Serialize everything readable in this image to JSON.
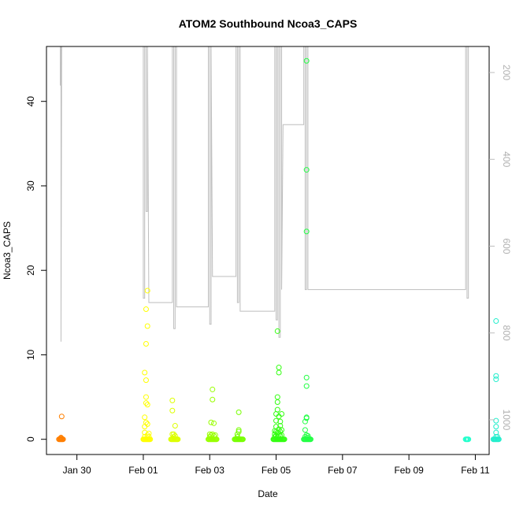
{
  "chart_data": {
    "type": "scatter",
    "title": "ATOM2 Southbound Ncoa3_CAPS",
    "xlabel": "Date",
    "ylabel": "Ncoa3_CAPS",
    "x_unit": "date",
    "xlim": [
      "2024-01-29 02:00",
      "2024-02-11 10:00"
    ],
    "ylim": [
      -1.8,
      46.5
    ],
    "x_ticks": [
      {
        "date": "2024-01-30",
        "label": "Jan 30"
      },
      {
        "date": "2024-02-01",
        "label": "Feb 01"
      },
      {
        "date": "2024-02-03",
        "label": "Feb 03"
      },
      {
        "date": "2024-02-05",
        "label": "Feb 05"
      },
      {
        "date": "2024-02-07",
        "label": "Feb 07"
      },
      {
        "date": "2024-02-09",
        "label": "Feb 09"
      },
      {
        "date": "2024-02-11",
        "label": "Feb 11"
      }
    ],
    "y_ticks": [
      0,
      10,
      20,
      30,
      40
    ],
    "secondary_axis": {
      "side": "right",
      "reversed": true,
      "range": [
        1080,
        140
      ],
      "ticks": [
        200,
        400,
        600,
        800,
        1000
      ],
      "color": "#bebebe",
      "series_type": "line",
      "x": [
        "2024-01-29 12:00",
        "2024-01-29 12:00",
        "2024-01-29 12:30",
        "2024-01-29 12:30",
        "2024-01-29 13:00",
        "2024-02-01 00:00",
        "2024-02-01 00:00",
        "2024-02-01 01:00",
        "2024-02-01 01:00",
        "2024-02-01 02:00",
        "2024-02-01 02:00",
        "2024-02-01 03:00",
        "2024-02-01 03:00",
        "2024-02-01 04:00",
        "2024-02-01 21:00",
        "2024-02-01 21:00",
        "2024-02-01 22:00",
        "2024-02-01 22:00",
        "2024-02-01 23:00",
        "2024-02-01 23:00",
        "2024-02-02 00:00",
        "2024-02-02 00:00",
        "2024-02-02 23:00",
        "2024-02-02 23:00",
        "2024-02-03 00:00",
        "2024-02-03 00:00",
        "2024-02-03 01:00",
        "2024-02-03 01:00",
        "2024-02-03 02:00",
        "2024-02-03 19:00",
        "2024-02-03 19:00",
        "2024-02-03 20:00",
        "2024-02-03 20:00",
        "2024-02-03 21:00",
        "2024-02-03 21:00",
        "2024-02-03 22:00",
        "2024-02-03 22:00",
        "2024-02-04 23:00",
        "2024-02-04 23:00",
        "2024-02-05 00:00",
        "2024-02-05 00:00",
        "2024-02-05 01:00",
        "2024-02-05 01:00",
        "2024-02-05 02:00",
        "2024-02-05 02:00",
        "2024-02-05 03:00",
        "2024-02-05 03:00",
        "2024-02-05 04:00",
        "2024-02-05 04:00",
        "2024-02-05 05:00",
        "2024-02-05 20:00",
        "2024-02-05 20:00",
        "2024-02-05 21:00",
        "2024-02-05 21:00",
        "2024-02-05 22:00",
        "2024-02-05 22:00",
        "2024-02-05 23:00",
        "2024-02-05 23:00",
        "2024-02-10 17:00",
        "2024-02-10 17:00",
        "2024-02-10 18:00",
        "2024-02-10 18:00",
        "2024-02-10 19:00",
        "2024-02-10 19:00",
        "2024-02-10 20:00"
      ],
      "values": [
        230,
        140,
        140,
        820,
        140,
        140,
        720,
        720,
        140,
        140,
        520,
        520,
        140,
        730,
        730,
        140,
        140,
        790,
        790,
        140,
        140,
        740,
        740,
        140,
        140,
        780,
        780,
        140,
        670,
        670,
        140,
        140,
        730,
        730,
        140,
        140,
        750,
        750,
        140,
        140,
        770,
        770,
        140,
        140,
        810,
        810,
        140,
        140,
        700,
        320,
        320,
        140,
        140,
        700,
        700,
        140,
        140,
        700,
        700,
        140,
        140,
        720,
        720,
        140,
        140
      ]
    },
    "series": [
      {
        "color": "#ff7f00",
        "x": [
          "2024-01-29 11:00",
          "2024-01-29 11:30",
          "2024-01-29 12:00",
          "2024-01-29 12:30",
          "2024-01-29 13:00",
          "2024-01-29 13:30",
          "2024-01-29 14:00",
          "2024-01-29 12:00",
          "2024-01-29 12:30",
          "2024-01-29 13:00",
          "2024-01-29 13:00"
        ],
        "y": [
          0,
          0,
          0,
          0,
          0,
          0,
          0,
          0.1,
          0.2,
          0.1,
          2.7
        ]
      },
      {
        "color": "#ffff00",
        "x": [
          "2024-02-01 00:00",
          "2024-02-01 00:30",
          "2024-02-01 01:00",
          "2024-02-01 01:30",
          "2024-02-01 02:00",
          "2024-02-01 02:30",
          "2024-02-01 03:00",
          "2024-02-01 03:30",
          "2024-02-01 04:00",
          "2024-02-01 04:30",
          "2024-02-01 05:00",
          "2024-02-01 01:00",
          "2024-02-01 01:00",
          "2024-02-01 01:00",
          "2024-02-01 01:00",
          "2024-02-01 01:00",
          "2024-02-01 02:00",
          "2024-02-01 02:00",
          "2024-02-01 02:00",
          "2024-02-01 02:00",
          "2024-02-01 02:00",
          "2024-02-01 03:00",
          "2024-02-01 03:00",
          "2024-02-01 03:00",
          "2024-02-01 03:00",
          "2024-02-01 04:00",
          "2024-02-01 04:00",
          "2024-02-01 02:00",
          "2024-02-01 03:00"
        ],
        "y": [
          0,
          0,
          0,
          0,
          0,
          0,
          0,
          0,
          0,
          0,
          0,
          0.3,
          0.8,
          1.5,
          2.6,
          7.9,
          2.0,
          4.3,
          5.0,
          11.3,
          15.4,
          0.5,
          1.8,
          4.1,
          13.4,
          0.3,
          0.7,
          7.0,
          17.6
        ]
      },
      {
        "color": "#ddff00",
        "x": [
          "2024-02-01 20:00",
          "2024-02-01 20:30",
          "2024-02-01 21:00",
          "2024-02-01 21:30",
          "2024-02-01 22:00",
          "2024-02-01 22:30",
          "2024-02-01 23:00",
          "2024-02-01 23:30",
          "2024-02-02 00:00",
          "2024-02-02 00:30",
          "2024-02-02 01:00",
          "2024-02-01 21:00",
          "2024-02-01 21:00",
          "2024-02-01 21:00",
          "2024-02-01 22:00",
          "2024-02-01 22:00",
          "2024-02-01 23:00",
          "2024-02-01 23:00"
        ],
        "y": [
          0,
          0,
          0,
          0,
          0,
          0,
          0,
          0,
          0,
          0,
          0,
          0.6,
          3.4,
          4.6,
          0.3,
          0.6,
          0.4,
          1.6
        ]
      },
      {
        "color": "#99ff00",
        "x": [
          "2024-02-02 23:00",
          "2024-02-02 23:30",
          "2024-02-03 00:00",
          "2024-02-03 00:30",
          "2024-02-03 01:00",
          "2024-02-03 01:30",
          "2024-02-03 02:00",
          "2024-02-03 02:30",
          "2024-02-03 03:00",
          "2024-02-03 03:30",
          "2024-02-03 04:00",
          "2024-02-03 04:30",
          "2024-02-03 05:00",
          "2024-02-03 00:00",
          "2024-02-03 00:00",
          "2024-02-03 01:00",
          "2024-02-03 01:00",
          "2024-02-03 02:00",
          "2024-02-03 02:00",
          "2024-02-03 02:00",
          "2024-02-03 03:00",
          "2024-02-03 03:00",
          "2024-02-03 04:00"
        ],
        "y": [
          0,
          0,
          0,
          0,
          0,
          0,
          0,
          0,
          0,
          0,
          0,
          0,
          0,
          0.3,
          0.6,
          0.5,
          2.0,
          0.6,
          4.7,
          5.9,
          0.4,
          1.9,
          0.5
        ]
      },
      {
        "color": "#77ff00",
        "x": [
          "2024-02-03 18:00",
          "2024-02-03 18:30",
          "2024-02-03 19:00",
          "2024-02-03 19:30",
          "2024-02-03 20:00",
          "2024-02-03 20:30",
          "2024-02-03 21:00",
          "2024-02-03 21:30",
          "2024-02-03 22:00",
          "2024-02-03 22:30",
          "2024-02-03 23:00",
          "2024-02-03 23:30",
          "2024-02-04 00:00",
          "2024-02-03 20:00",
          "2024-02-03 20:00",
          "2024-02-03 21:00",
          "2024-02-03 21:00",
          "2024-02-03 21:00"
        ],
        "y": [
          0,
          0,
          0,
          0,
          0,
          0,
          0,
          0,
          0,
          0,
          0,
          0,
          0,
          0.3,
          0.6,
          0.9,
          1.1,
          3.2
        ]
      },
      {
        "color": "#33ff11",
        "x": [
          "2024-02-04 22:00",
          "2024-02-04 22:30",
          "2024-02-04 23:00",
          "2024-02-04 23:30",
          "2024-02-05 00:00",
          "2024-02-05 00:30",
          "2024-02-05 01:00",
          "2024-02-05 01:30",
          "2024-02-05 02:00",
          "2024-02-05 02:30",
          "2024-02-05 03:00",
          "2024-02-05 03:30",
          "2024-02-05 04:00",
          "2024-02-05 04:30",
          "2024-02-05 05:00",
          "2024-02-05 05:30",
          "2024-02-05 06:00",
          "2024-02-04 23:00",
          "2024-02-04 23:00",
          "2024-02-04 23:00",
          "2024-02-05 00:00",
          "2024-02-05 00:00",
          "2024-02-05 00:00",
          "2024-02-05 00:00",
          "2024-02-05 00:00",
          "2024-02-05 01:00",
          "2024-02-05 01:00",
          "2024-02-05 01:00",
          "2024-02-05 01:00",
          "2024-02-05 01:00",
          "2024-02-05 01:00",
          "2024-02-05 02:00",
          "2024-02-05 02:00",
          "2024-02-05 02:00",
          "2024-02-05 02:00",
          "2024-02-05 02:00",
          "2024-02-05 03:00",
          "2024-02-05 03:00",
          "2024-02-05 03:00",
          "2024-02-05 03:00",
          "2024-02-05 04:00",
          "2024-02-05 04:00",
          "2024-02-05 04:00"
        ],
        "y": [
          0,
          0,
          0,
          0,
          0,
          0,
          0,
          0,
          0,
          0,
          0,
          0,
          0,
          0,
          0,
          0,
          0,
          0.3,
          0.6,
          1.0,
          0.4,
          0.9,
          1.5,
          2.2,
          3.0,
          0.3,
          0.8,
          3.5,
          4.4,
          5.0,
          12.8,
          0.5,
          1.2,
          2.7,
          7.9,
          8.5,
          0.4,
          0.9,
          1.6,
          2.1,
          0.5,
          1.1,
          3.0
        ]
      },
      {
        "color": "#22ff44",
        "x": [
          "2024-02-05 20:00",
          "2024-02-05 20:30",
          "2024-02-05 21:00",
          "2024-02-05 21:30",
          "2024-02-05 22:00",
          "2024-02-05 22:30",
          "2024-02-05 23:00",
          "2024-02-05 23:30",
          "2024-02-06 00:00",
          "2024-02-06 00:30",
          "2024-02-06 01:00",
          "2024-02-05 21:00",
          "2024-02-05 21:00",
          "2024-02-05 21:00",
          "2024-02-05 22:00",
          "2024-02-05 22:00",
          "2024-02-05 22:00",
          "2024-02-05 22:00",
          "2024-02-05 22:00",
          "2024-02-05 22:00",
          "2024-02-05 22:00",
          "2024-02-05 22:00",
          "2024-02-05 23:00",
          "2024-02-05 23:00"
        ],
        "y": [
          0,
          0,
          0,
          0,
          0,
          0,
          0,
          0,
          0,
          0,
          0,
          0.3,
          1.1,
          2.1,
          0.5,
          2.6,
          6.3,
          7.3,
          24.6,
          31.9,
          44.8,
          2.5,
          0.4,
          0.2
        ]
      },
      {
        "color": "#22ffcc",
        "x": [
          "2024-02-10 17:00",
          "2024-02-10 17:30",
          "2024-02-10 18:00",
          "2024-02-10 18:30",
          "2024-02-10 19:00"
        ],
        "y": [
          0,
          0,
          0,
          0,
          0
        ]
      },
      {
        "color": "#22eecc",
        "x": [
          "2024-02-11 13:00",
          "2024-02-11 13:30",
          "2024-02-11 14:00",
          "2024-02-11 14:30",
          "2024-02-11 15:00",
          "2024-02-11 15:30",
          "2024-02-11 16:00",
          "2024-02-11 16:30",
          "2024-02-11 17:00",
          "2024-02-11 15:00",
          "2024-02-11 15:00",
          "2024-02-11 15:00",
          "2024-02-11 15:00",
          "2024-02-11 15:00",
          "2024-02-11 15:00",
          "2024-02-11 15:00",
          "2024-02-11 16:00"
        ],
        "y": [
          0,
          0,
          0,
          0,
          0,
          0,
          0,
          0,
          0,
          0.3,
          0.8,
          1.5,
          2.2,
          7.1,
          7.5,
          14.0,
          0.3
        ]
      }
    ]
  }
}
